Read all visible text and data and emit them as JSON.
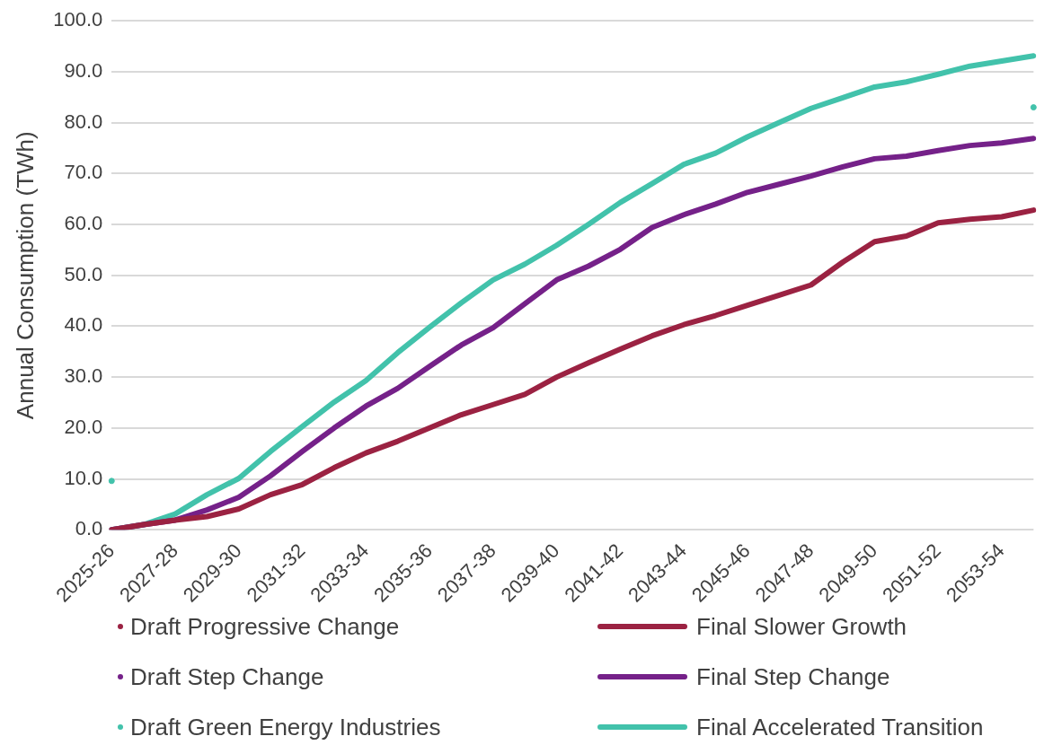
{
  "chart_data": {
    "type": "line",
    "ylabel": "Annual Consumption (TWh)",
    "categories": [
      "2025-26",
      null,
      "2027-28",
      null,
      "2029-30",
      null,
      "2031-32",
      null,
      "2033-34",
      null,
      "2035-36",
      null,
      "2037-38",
      null,
      "2039-40",
      null,
      "2041-42",
      null,
      "2043-44",
      null,
      "2045-46",
      null,
      "2047-48",
      null,
      "2049-50",
      null,
      "2051-52",
      null,
      "2053-54",
      null
    ],
    "series": [
      {
        "name": "Draft Progressive Change",
        "type": "scatter",
        "marker": "circle",
        "color": "#9b2242",
        "values": [
          null,
          null,
          null,
          null,
          null,
          null,
          null,
          null,
          null,
          null,
          null,
          null,
          null,
          null,
          null,
          null,
          null,
          null,
          null,
          null,
          null,
          null,
          null,
          null,
          null,
          null,
          null,
          null,
          null,
          null
        ]
      },
      {
        "name": "Final Slower Growth",
        "color": "#9b2242",
        "values": [
          0,
          1.0,
          1.9,
          2.6,
          4.1,
          6.9,
          8.9,
          12.2,
          15.1,
          17.4,
          20.0,
          22.6,
          24.6,
          26.6,
          30.0,
          32.8,
          35.5,
          38.1,
          40.3,
          42.1,
          44.1,
          46.1,
          48.1,
          52.6,
          56.6,
          57.7,
          60.3,
          61.0,
          61.5,
          62.8
        ]
      },
      {
        "name": "Draft Step Change",
        "type": "scatter",
        "marker": "circle",
        "color": "#752189",
        "values": [
          null,
          null,
          null,
          null,
          null,
          null,
          null,
          null,
          null,
          null,
          null,
          null,
          null,
          null,
          null,
          null,
          null,
          null,
          null,
          null,
          null,
          null,
          null,
          null,
          null,
          null,
          null,
          null,
          null,
          null
        ]
      },
      {
        "name": "Final Step Change",
        "color": "#752189",
        "values": [
          0,
          1.0,
          1.9,
          3.9,
          6.4,
          10.6,
          15.4,
          20.0,
          24.3,
          27.8,
          32.1,
          36.3,
          39.7,
          44.4,
          49.1,
          51.8,
          55.1,
          59.4,
          61.9,
          64.0,
          66.3,
          67.9,
          69.5,
          71.3,
          72.9,
          73.4,
          74.5,
          75.5,
          76.0,
          76.9
        ]
      },
      {
        "name": "Draft Green Energy Industries",
        "type": "scatter",
        "marker": "circle",
        "color": "#42c2ab",
        "values": [
          9.6,
          null,
          null,
          null,
          null,
          null,
          null,
          null,
          null,
          null,
          null,
          null,
          null,
          null,
          null,
          null,
          null,
          null,
          null,
          null,
          null,
          null,
          null,
          null,
          null,
          null,
          null,
          null,
          null,
          83.0
        ]
      },
      {
        "name": "Final Accelerated Transition",
        "color": "#42c2ab",
        "values": [
          0,
          1.0,
          3.1,
          6.9,
          10.1,
          15.4,
          20.3,
          25.1,
          29.3,
          34.8,
          39.8,
          44.6,
          49.1,
          52.2,
          55.9,
          60.0,
          64.3,
          68.0,
          71.8,
          74.0,
          77.2,
          80.0,
          82.8,
          84.9,
          87.0,
          88.0,
          89.5,
          91.1,
          92.1,
          93.1
        ]
      }
    ],
    "ylim": [
      0,
      100
    ],
    "yticks": [
      {
        "value": 0,
        "label": "0.0"
      },
      {
        "value": 10,
        "label": "10.0"
      },
      {
        "value": 20,
        "label": "20.0"
      },
      {
        "value": 30,
        "label": "30.0"
      },
      {
        "value": 40,
        "label": "40.0"
      },
      {
        "value": 50,
        "label": "50.0"
      },
      {
        "value": 60,
        "label": "60.0"
      },
      {
        "value": 70,
        "label": "70.0"
      },
      {
        "value": 80,
        "label": "80.0"
      },
      {
        "value": 90,
        "label": "90.0"
      },
      {
        "value": 100,
        "label": "100.0"
      }
    ],
    "grid": "y",
    "legend": "bottom",
    "marker": "none",
    "line_style": "solid"
  }
}
